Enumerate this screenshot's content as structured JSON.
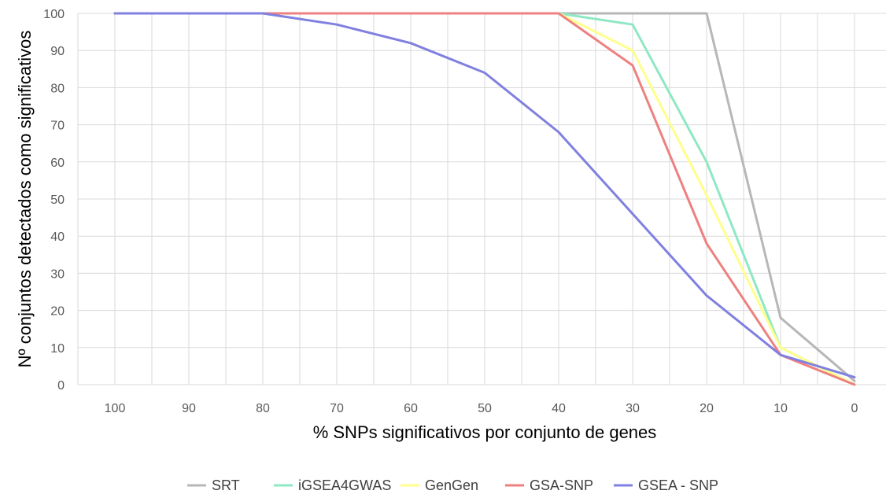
{
  "chart_data": {
    "type": "line",
    "title": "",
    "xlabel": "% SNPs significativos por conjunto de genes",
    "ylabel": "Nº conjuntos detectados como significativos",
    "x_reversed": true,
    "xlim": [
      100,
      0
    ],
    "ylim": [
      0,
      100
    ],
    "x_ticks": [
      "100",
      "90",
      "80",
      "70",
      "60",
      "50",
      "40",
      "30",
      "20",
      "10",
      "0"
    ],
    "y_ticks": [
      "0",
      "10",
      "20",
      "30",
      "40",
      "50",
      "60",
      "70",
      "80",
      "90",
      "100"
    ],
    "grid": "vertical-and-horizontal",
    "legend_position": "bottom",
    "x": [
      100,
      90,
      80,
      70,
      60,
      50,
      40,
      30,
      20,
      10,
      0
    ],
    "series": [
      {
        "name": "SRT",
        "color": "#b7b7b7",
        "values": [
          100,
          100,
          100,
          100,
          100,
          100,
          100,
          100,
          100,
          18,
          1
        ]
      },
      {
        "name": "iGSEA4GWAS",
        "color": "#8fe8c4",
        "values": [
          100,
          100,
          100,
          100,
          100,
          100,
          100,
          97,
          60,
          10,
          0
        ]
      },
      {
        "name": "GenGen",
        "color": "#ffff8c",
        "values": [
          100,
          100,
          100,
          100,
          100,
          100,
          100,
          90,
          51,
          10,
          0
        ]
      },
      {
        "name": "GSA-SNP",
        "color": "#ee8080",
        "values": [
          100,
          100,
          100,
          100,
          100,
          100,
          100,
          86,
          38,
          8,
          0
        ]
      },
      {
        "name": "GSEA - SNP",
        "color": "#8080e0",
        "values": [
          100,
          100,
          100,
          97,
          92,
          84,
          68,
          46,
          24,
          8,
          2
        ]
      }
    ]
  }
}
